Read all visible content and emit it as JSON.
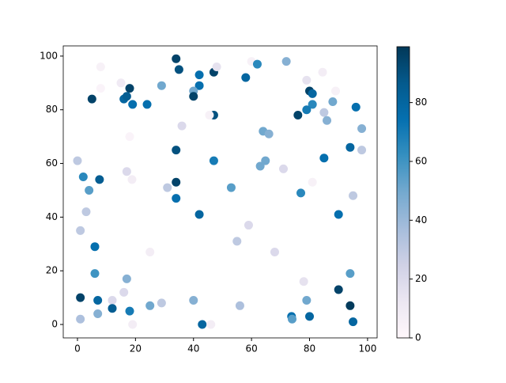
{
  "chart_data": {
    "type": "scatter",
    "colormap": "PuBu",
    "x": [
      34,
      42,
      35,
      47,
      48,
      60,
      62,
      72,
      8,
      18,
      15,
      8,
      29,
      42,
      40,
      40,
      5,
      16,
      17,
      19,
      24,
      58,
      79,
      84.5,
      80,
      81,
      89,
      81,
      79,
      88,
      85,
      86,
      76,
      96,
      98,
      98,
      94,
      47,
      45.5,
      36,
      64,
      66,
      18,
      34,
      0,
      47,
      64.8,
      63,
      71,
      85,
      2,
      17,
      18.8,
      7.6,
      34,
      31,
      81,
      4,
      53,
      34,
      77,
      95,
      3,
      42,
      90,
      1,
      55,
      59,
      68,
      25,
      6,
      6,
      94,
      17,
      78,
      16,
      1,
      90,
      7,
      12,
      40,
      79,
      12,
      25,
      29,
      56,
      94,
      7,
      18,
      73.8,
      74,
      80,
      1,
      43,
      46,
      19,
      95
    ],
    "y": [
      99,
      93,
      95,
      94,
      96,
      98,
      97,
      98,
      96,
      88,
      90,
      88,
      89,
      89,
      87,
      85,
      84,
      84,
      85,
      82,
      82,
      92,
      91,
      94,
      87,
      86,
      87,
      82,
      80,
      83,
      79,
      76,
      78,
      81,
      73,
      65,
      66,
      78,
      78,
      74,
      72,
      71,
      70,
      65,
      61,
      61,
      61,
      59,
      58,
      62,
      55,
      57,
      54,
      54,
      53,
      51,
      53,
      50,
      51,
      47,
      49,
      48,
      42,
      41,
      41,
      35,
      31,
      37,
      27,
      27,
      29,
      19,
      19,
      17,
      16,
      12,
      10,
      13,
      9,
      9,
      9,
      9,
      6,
      7,
      8,
      7,
      7,
      4,
      5,
      3,
      2,
      3,
      2,
      0,
      0,
      0,
      1
    ],
    "c": [
      95,
      75,
      90,
      95,
      15,
      5,
      65,
      45,
      5,
      95,
      10,
      3,
      50,
      75,
      50,
      95,
      95,
      80,
      85,
      75,
      75,
      80,
      15,
      8,
      95,
      80,
      5,
      65,
      70,
      50,
      30,
      45,
      95,
      75,
      45,
      30,
      80,
      90,
      5,
      20,
      50,
      45,
      3,
      90,
      30,
      70,
      50,
      50,
      20,
      75,
      65,
      20,
      8,
      85,
      95,
      30,
      5,
      55,
      55,
      75,
      65,
      30,
      30,
      80,
      75,
      30,
      30,
      20,
      20,
      8,
      75,
      60,
      55,
      45,
      15,
      20,
      95,
      95,
      80,
      20,
      45,
      50,
      85,
      50,
      30,
      35,
      98,
      45,
      70,
      75,
      55,
      80,
      35,
      80,
      8,
      8,
      80
    ],
    "xlim": [
      -4.9,
      103.3
    ],
    "ylim": [
      -5,
      103.8
    ],
    "xticks": [
      0,
      20,
      40,
      60,
      80,
      100
    ],
    "yticks": [
      0,
      20,
      40,
      60,
      80,
      100
    ],
    "clim": [
      0,
      99
    ],
    "cticks": [
      0,
      20,
      40,
      60,
      80
    ]
  }
}
